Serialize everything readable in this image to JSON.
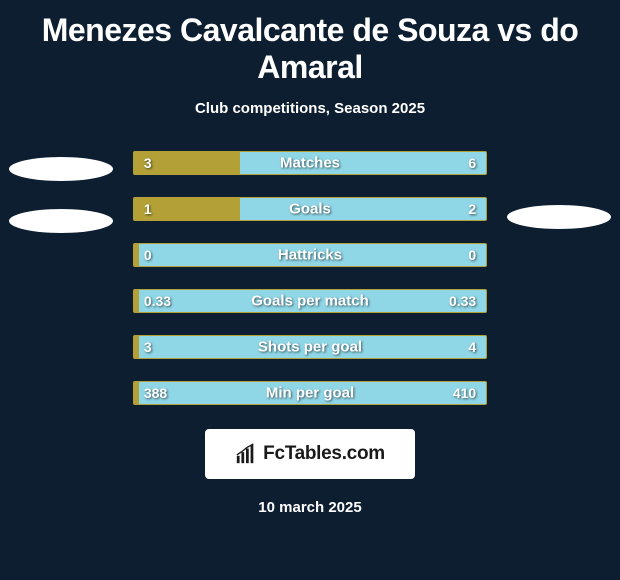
{
  "title": "Menezes Cavalcante de Souza vs do Amaral",
  "subtitle": "Club competitions, Season 2025",
  "date": "10 march 2025",
  "branding_text": "FcTables.com",
  "colors": {
    "background": "#0c1e30",
    "left_fill": "#b3a138",
    "right_bg": "#8fd6e6",
    "border": "#b3a138",
    "oval": "#ffffff",
    "text": "#ffffff"
  },
  "bars": [
    {
      "label": "Matches",
      "left": "3",
      "right": "6",
      "fill_pct": 30
    },
    {
      "label": "Goals",
      "left": "1",
      "right": "2",
      "fill_pct": 30
    },
    {
      "label": "Hattricks",
      "left": "0",
      "right": "0",
      "fill_pct": 1.5
    },
    {
      "label": "Goals per match",
      "left": "0.33",
      "right": "0.33",
      "fill_pct": 1.5
    },
    {
      "label": "Shots per goal",
      "left": "3",
      "right": "4",
      "fill_pct": 1.5
    },
    {
      "label": "Min per goal",
      "left": "388",
      "right": "410",
      "fill_pct": 1.5
    }
  ],
  "left_ovals": 2,
  "right_ovals": 1
}
